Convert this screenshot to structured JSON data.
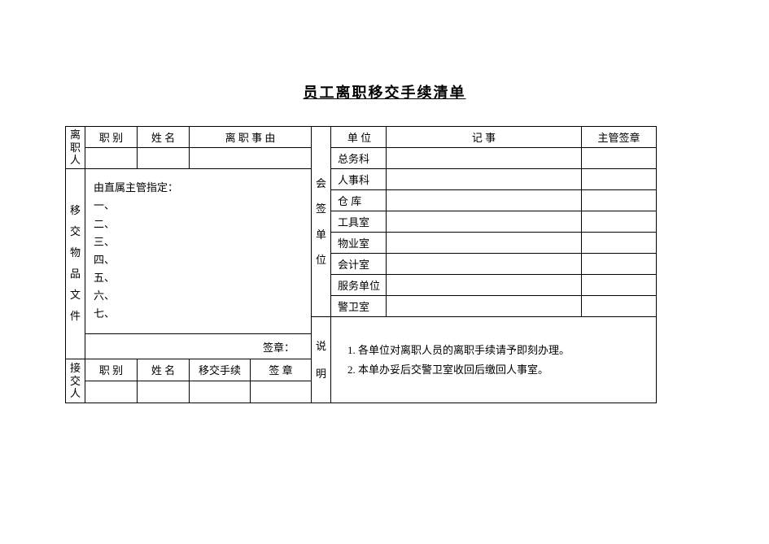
{
  "title": "员工离职移交手续清单",
  "left": {
    "departing": {
      "sectionLabel": "离\n职\n人",
      "cols": {
        "position": "职  别",
        "name": "姓  名",
        "reason": "离  职  事  由"
      }
    },
    "handover": {
      "sectionLabel": "移\n交\n物\n品\n文\n件",
      "instruction": "由直属主管指定：",
      "items": [
        "一、",
        "二、",
        "三、",
        "四、",
        "五、",
        "六、",
        "七、"
      ],
      "signLabel": "签章："
    },
    "receiver": {
      "sectionLabel": "接\n交\n人",
      "cols": {
        "position": "职  别",
        "name": "姓  名",
        "procedure": "移交手续",
        "sign": "签  章"
      }
    }
  },
  "right": {
    "countersign": {
      "sectionLabel": "会\n签\n单\n位",
      "headers": {
        "unit": "单    位",
        "record": "记              事",
        "supervisor": "主管签章"
      },
      "rows": [
        "总务科",
        "人事科",
        "仓  库",
        "工具室",
        "物业室",
        "会计室",
        "服务单位",
        "警卫室"
      ]
    },
    "notes": {
      "sectionLabel": "说\n明",
      "items": [
        "各单位对离职人员的离职手续请予即刻办理。",
        "本单办妥后交警卫室收回后缴回人事室。"
      ]
    }
  },
  "style": {
    "borderColor": "#000000",
    "bgColor": "#ffffff",
    "fontSize": 13,
    "titleFontSize": 18
  }
}
